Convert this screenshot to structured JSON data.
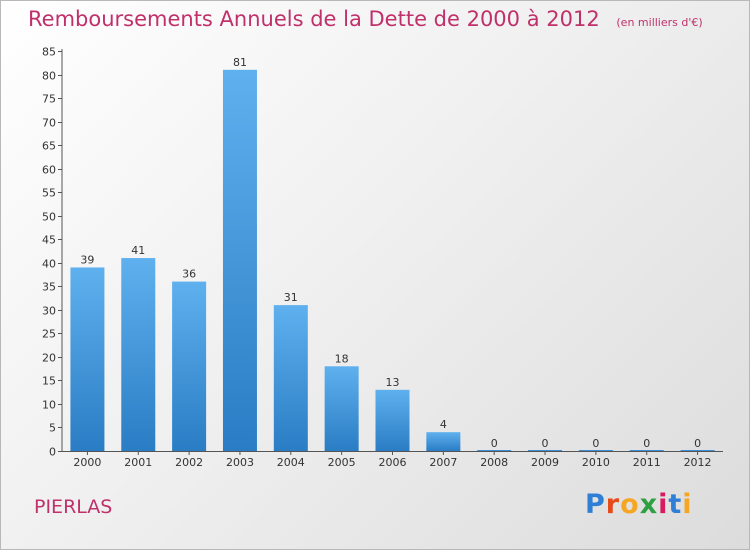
{
  "header": {
    "title": "Remboursements Annuels de la Dette de 2000 à 2012",
    "unit": "(en milliers d'€)"
  },
  "commune": "PIERLAS",
  "logo": {
    "letters": [
      "P",
      "r",
      "o",
      "x",
      "i",
      "t",
      "i"
    ],
    "colors": [
      "#2f7fd6",
      "#e64a19",
      "#f5a623",
      "#2ea043",
      "#d81b60",
      "#2f7fd6",
      "#f5a623"
    ]
  },
  "chart_data": {
    "type": "bar",
    "categories": [
      "2000",
      "2001",
      "2002",
      "2003",
      "2004",
      "2005",
      "2006",
      "2007",
      "2008",
      "2009",
      "2010",
      "2011",
      "2012"
    ],
    "values": [
      39,
      41,
      36,
      81,
      31,
      18,
      13,
      4,
      0,
      0,
      0,
      0,
      0
    ],
    "ylim": [
      0,
      85
    ],
    "yticks": [
      0,
      5,
      10,
      15,
      20,
      25,
      30,
      35,
      40,
      45,
      50,
      55,
      60,
      65,
      70,
      75,
      80,
      85
    ],
    "grid": false,
    "bar_color": "#3a8fd8"
  }
}
